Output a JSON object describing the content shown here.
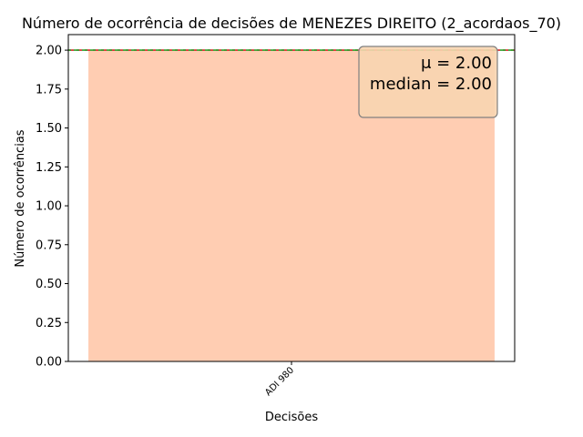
{
  "chart_data": {
    "type": "bar",
    "title": "Número de ocorrência de decisões de MENEZES DIREITO (2_acordaos_70)",
    "xlabel": "Decisões",
    "ylabel": "Número de ocorrências",
    "categories": [
      "ADI 980"
    ],
    "values": [
      2
    ],
    "ylim": [
      0,
      2.1
    ],
    "yticks": [
      "0.00",
      "0.25",
      "0.50",
      "0.75",
      "1.00",
      "1.25",
      "1.50",
      "1.75",
      "2.00"
    ],
    "ytick_values": [
      0,
      0.25,
      0.5,
      0.75,
      1.0,
      1.25,
      1.5,
      1.75,
      2.0
    ],
    "mean": 2.0,
    "median": 2.0,
    "stats_box": {
      "mean_label": "μ = 2.00",
      "median_label": "median = 2.00",
      "placement": "top-right"
    },
    "bar_color": "#ffcdb2",
    "mean_line_color": "#d62728",
    "median_line_color": "#2ca02c",
    "stats_box_color": "#f8d5b0",
    "grid": false,
    "legend": "none"
  }
}
